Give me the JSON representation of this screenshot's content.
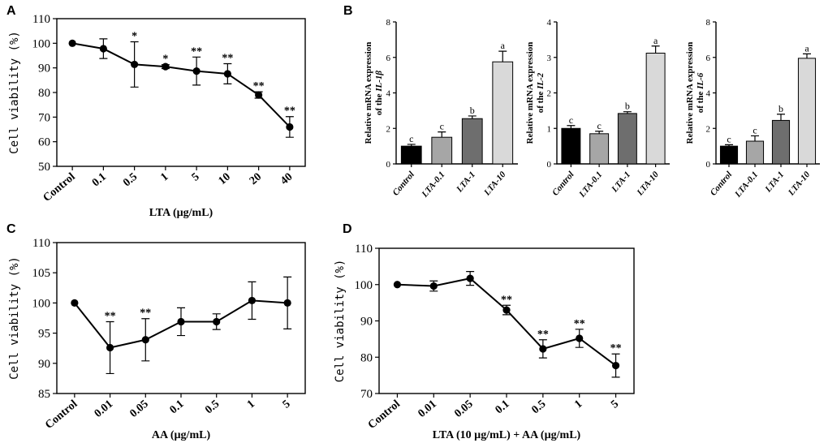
{
  "chart_data": [
    {
      "id": "A",
      "panel_label": "A",
      "type": "line",
      "xlabel": "LTA (µg/mL)",
      "ylabel": "Cell viability (%)",
      "ylim": [
        50,
        110
      ],
      "yticks": [
        50,
        60,
        70,
        80,
        90,
        100,
        110
      ],
      "categories": [
        "Control",
        "0.1",
        "0.5",
        "1",
        "5",
        "10",
        "20",
        "40"
      ],
      "values": [
        100,
        97.8,
        91.4,
        90.5,
        88.7,
        87.6,
        79,
        66
      ],
      "errors": [
        0,
        4,
        9.2,
        0.8,
        5.7,
        4.1,
        1.3,
        4.2
      ],
      "annotations": [
        "",
        "",
        "*",
        "*",
        "**",
        "**",
        "**",
        "**"
      ]
    },
    {
      "id": "B1",
      "panel_label": "B",
      "type": "bar",
      "ylabel_line1": "Relative mRNA expression",
      "ylabel_line2_prefix": "of the ",
      "ylabel_gene": "IL-1β",
      "ylim": [
        0,
        8
      ],
      "yticks": [
        0,
        2,
        4,
        6,
        8
      ],
      "categories": [
        "Control",
        "LTA-0.1",
        "LTA-1",
        "LTA-10"
      ],
      "values": [
        1,
        1.5,
        2.55,
        5.75
      ],
      "errors": [
        0.1,
        0.3,
        0.15,
        0.6
      ],
      "colors": [
        "#000000",
        "#a6a6a6",
        "#6e6e6e",
        "#d9d9d9"
      ],
      "annotations": [
        "c",
        "c",
        "b",
        "a"
      ]
    },
    {
      "id": "B2",
      "type": "bar",
      "ylabel_line1": "Relative mRNA expression",
      "ylabel_line2_prefix": "of the ",
      "ylabel_gene": "IL-2",
      "ylim": [
        0,
        4
      ],
      "yticks": [
        0,
        1,
        2,
        3,
        4
      ],
      "categories": [
        "Control",
        "LTA-0.1",
        "LTA-1",
        "LTA-10"
      ],
      "values": [
        1,
        0.85,
        1.42,
        3.12
      ],
      "errors": [
        0.08,
        0.07,
        0.05,
        0.2
      ],
      "colors": [
        "#000000",
        "#a6a6a6",
        "#6e6e6e",
        "#d9d9d9"
      ],
      "annotations": [
        "c",
        "c",
        "b",
        "a"
      ]
    },
    {
      "id": "B3",
      "type": "bar",
      "ylabel_line1": "Relative mRNA expression",
      "ylabel_line2_prefix": "of the ",
      "ylabel_gene": "IL-6",
      "ylim": [
        0,
        8
      ],
      "yticks": [
        0,
        2,
        4,
        6,
        8
      ],
      "categories": [
        "Control",
        "LTA-0.1",
        "LTA-1",
        "LTA-10"
      ],
      "values": [
        1,
        1.28,
        2.45,
        5.95
      ],
      "errors": [
        0.08,
        0.3,
        0.35,
        0.25
      ],
      "colors": [
        "#000000",
        "#a6a6a6",
        "#6e6e6e",
        "#d9d9d9"
      ],
      "annotations": [
        "c",
        "c",
        "b",
        "a"
      ]
    },
    {
      "id": "C",
      "panel_label": "C",
      "type": "line",
      "xlabel": "AA (µg/mL)",
      "ylabel": "Cell viability (%)",
      "ylim": [
        85,
        110
      ],
      "yticks": [
        85,
        90,
        95,
        100,
        105,
        110
      ],
      "categories": [
        "Control",
        "0.01",
        "0.05",
        "0.1",
        "0.5",
        "1",
        "5"
      ],
      "values": [
        100,
        92.6,
        93.9,
        96.9,
        96.9,
        100.4,
        100
      ],
      "errors": [
        0,
        4.3,
        3.5,
        2.3,
        1.3,
        3.1,
        4.3
      ],
      "annotations": [
        "",
        "**",
        "**",
        "",
        "",
        "",
        ""
      ]
    },
    {
      "id": "D",
      "panel_label": "D",
      "type": "line",
      "xlabel": "LTA (10 µg/mL) + AA (µg/mL)",
      "ylabel": "Cell viability (%)",
      "ylim": [
        70,
        110
      ],
      "yticks": [
        70,
        80,
        90,
        100,
        110
      ],
      "categories": [
        "Control",
        "0.01",
        "0.05",
        "0.1",
        "0.5",
        "1",
        "5"
      ],
      "values": [
        100,
        99.6,
        101.7,
        93,
        82.3,
        85.2,
        77.7
      ],
      "errors": [
        0,
        1.4,
        1.9,
        1.3,
        2.5,
        2.5,
        3.2
      ],
      "annotations": [
        "",
        "",
        "",
        "**",
        "**",
        "**",
        "**"
      ]
    }
  ]
}
